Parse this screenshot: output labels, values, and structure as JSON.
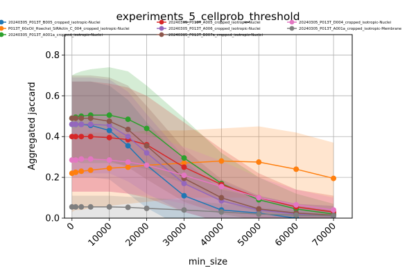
{
  "chart_data": {
    "type": "line",
    "title": "experiments_5_cellprob_threshold",
    "xlabel": "min_size",
    "ylabel": "Aggregated jaccard",
    "xlim": [
      -2000,
      75000
    ],
    "ylim": [
      0,
      0.9
    ],
    "xticks": [
      0,
      10000,
      20000,
      30000,
      40000,
      50000,
      60000,
      70000
    ],
    "yticks": [
      0.0,
      0.2,
      0.4,
      0.6,
      0.8
    ],
    "grid": true,
    "legend_position": "top (3 columns, overlapping title)",
    "x": [
      0,
      1000,
      2500,
      5000,
      10000,
      15000,
      20000,
      30000,
      40000,
      50000,
      60000,
      70000
    ],
    "series": [
      {
        "name": "20240305_P013T_B005_cropped_isotropic-Nuclei",
        "color": "#1f77b4",
        "values": [
          0.46,
          0.46,
          0.46,
          0.455,
          0.43,
          0.355,
          0.26,
          0.11,
          0.04,
          0.025,
          0.0,
          -0.005
        ],
        "band_low": [
          0.2,
          0.2,
          0.2,
          0.2,
          0.19,
          0.12,
          0.05,
          -0.05,
          -0.05,
          -0.05,
          -0.05,
          -0.05
        ],
        "band_high": [
          0.67,
          0.67,
          0.67,
          0.67,
          0.65,
          0.58,
          0.47,
          0.28,
          0.14,
          0.1,
          0.06,
          0.04
        ]
      },
      {
        "name": "P013T_60xOil_Hoechst_SiRActin_C_004_cropped_isotropic-Nuclei",
        "color": "#ff7f0e",
        "values": [
          0.22,
          0.225,
          0.23,
          0.235,
          0.245,
          0.25,
          0.26,
          0.27,
          0.28,
          0.275,
          0.24,
          0.195
        ],
        "band_low": [
          0.03,
          0.04,
          0.04,
          0.05,
          0.06,
          0.07,
          0.08,
          0.1,
          0.1,
          0.1,
          0.05,
          0.02
        ],
        "band_high": [
          0.4,
          0.41,
          0.41,
          0.42,
          0.42,
          0.42,
          0.43,
          0.43,
          0.44,
          0.45,
          0.42,
          0.37
        ]
      },
      {
        "name": "20240305_P013T_A001a_cropped_isotropic-Nuclei",
        "color": "#2ca02c",
        "values": [
          0.49,
          0.495,
          0.5,
          0.505,
          0.505,
          0.485,
          0.44,
          0.295,
          0.17,
          0.09,
          0.045,
          0.02
        ],
        "band_low": [
          0.28,
          0.28,
          0.27,
          0.27,
          0.27,
          0.26,
          0.24,
          0.17,
          0.08,
          0.03,
          0.0,
          -0.02
        ],
        "band_high": [
          0.7,
          0.71,
          0.72,
          0.73,
          0.74,
          0.72,
          0.65,
          0.49,
          0.32,
          0.2,
          0.12,
          0.07
        ]
      },
      {
        "name": "20240305_P013T_A005_cropped_isotropic-Nuclei",
        "color": "#d62728",
        "values": [
          0.4,
          0.4,
          0.4,
          0.4,
          0.395,
          0.385,
          0.36,
          0.25,
          0.165,
          0.1,
          0.055,
          0.03
        ],
        "band_low": [
          0.13,
          0.13,
          0.13,
          0.13,
          0.13,
          0.12,
          0.1,
          0.03,
          -0.02,
          -0.03,
          -0.04,
          -0.05
        ],
        "band_high": [
          0.67,
          0.67,
          0.67,
          0.67,
          0.66,
          0.64,
          0.6,
          0.47,
          0.34,
          0.22,
          0.14,
          0.11
        ]
      },
      {
        "name": "20240305_P013T_A006_cropped_isotropic-Nuclei",
        "color": "#9467bd",
        "values": [
          0.46,
          0.46,
          0.46,
          0.46,
          0.455,
          0.4,
          0.32,
          0.17,
          0.085,
          0.04,
          0.02,
          0.01
        ],
        "band_low": [
          0.22,
          0.22,
          0.22,
          0.22,
          0.22,
          0.18,
          0.12,
          0.03,
          -0.02,
          -0.03,
          -0.04,
          -0.04
        ],
        "band_high": [
          0.69,
          0.69,
          0.69,
          0.69,
          0.68,
          0.62,
          0.51,
          0.3,
          0.18,
          0.11,
          0.07,
          0.06
        ]
      },
      {
        "name": "20240305_P013T_B007a_cropped_isotropic-Nuclei",
        "color": "#8c564b",
        "values": [
          0.49,
          0.49,
          0.49,
          0.49,
          0.475,
          0.435,
          0.355,
          0.195,
          0.1,
          0.045,
          0.025,
          0.015
        ],
        "band_low": [
          0.29,
          0.29,
          0.29,
          0.29,
          0.28,
          0.25,
          0.19,
          0.08,
          0.02,
          -0.01,
          -0.02,
          -0.03
        ],
        "band_high": [
          0.7,
          0.7,
          0.7,
          0.7,
          0.69,
          0.65,
          0.55,
          0.34,
          0.19,
          0.11,
          0.07,
          0.06
        ]
      },
      {
        "name": "20240305_P013T_D004_cropped_isotropic-Nuclei",
        "color": "#e377c2",
        "values": [
          0.285,
          0.285,
          0.29,
          0.29,
          0.285,
          0.275,
          0.26,
          0.21,
          0.155,
          0.1,
          0.065,
          0.04
        ],
        "band_low": [
          0.13,
          0.13,
          0.13,
          0.13,
          0.13,
          0.12,
          0.11,
          0.07,
          0.03,
          0.0,
          -0.01,
          -0.02
        ],
        "band_high": [
          0.44,
          0.44,
          0.45,
          0.45,
          0.44,
          0.43,
          0.41,
          0.35,
          0.28,
          0.2,
          0.14,
          0.1
        ]
      },
      {
        "name": "20240305_P013T_A001a_cropped_isotropic-Membrane",
        "color": "#7f7f7f",
        "values": [
          0.055,
          0.055,
          0.055,
          0.055,
          0.055,
          0.053,
          0.048,
          0.04,
          0.03,
          0.02,
          0.015,
          0.012
        ],
        "band_low": [
          0.0,
          0.0,
          0.0,
          0.0,
          0.0,
          0.0,
          0.0,
          0.0,
          0.0,
          0.0,
          0.0,
          0.0
        ],
        "band_high": [
          0.11,
          0.11,
          0.11,
          0.11,
          0.11,
          0.105,
          0.1,
          0.09,
          0.07,
          0.05,
          0.04,
          0.035
        ]
      }
    ]
  }
}
